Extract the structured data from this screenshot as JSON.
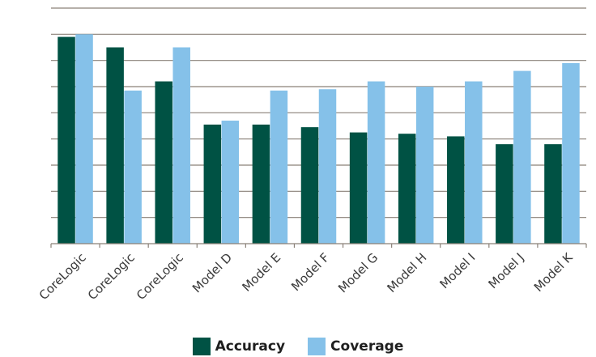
{
  "chart_data": {
    "type": "bar",
    "categories": [
      "CoreLogic",
      "CoreLogic",
      "CoreLogic",
      "Model D",
      "Model E",
      "Model F",
      "Model G",
      "Model H",
      "Model I",
      "Model J",
      "Model K"
    ],
    "series": [
      {
        "name": "Accuracy",
        "color": "#005244",
        "values": [
          7.9,
          7.5,
          6.2,
          4.55,
          4.55,
          4.45,
          4.25,
          4.2,
          4.1,
          3.8,
          3.8
        ]
      },
      {
        "name": "Coverage",
        "color": "#85c1e9",
        "values": [
          8.0,
          5.85,
          7.5,
          4.7,
          5.85,
          5.9,
          6.2,
          6.0,
          6.2,
          6.6,
          6.9
        ]
      }
    ],
    "ylim": [
      0,
      9
    ],
    "grid": true,
    "ytick_labels": false,
    "legend_position": "bottom-center"
  }
}
